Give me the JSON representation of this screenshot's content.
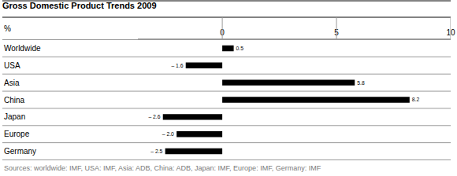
{
  "chart_data": {
    "type": "bar",
    "orientation": "horizontal",
    "title": "Gross Domestic Product Trends 2009",
    "xlabel": "%",
    "source": "Sources: worldwide: IMF, USA: IMF, Asia: ADB, China: ADB, Japan: IMF, Europe: IMF, Germany: IMF",
    "categories": [
      "Worldwide",
      "USA",
      "Asia",
      "China",
      "Japan",
      "Europe",
      "Germany"
    ],
    "values": [
      0.5,
      -1.6,
      5.8,
      8.2,
      -2.6,
      -2.0,
      -2.5
    ],
    "value_labels": [
      "0.5",
      "– 1.6",
      "5.8",
      "8.2",
      "– 2.6",
      "– 2.0",
      "– 2.5"
    ],
    "color": "#000000",
    "xlim": [
      -3.7,
      10
    ],
    "xticks": [
      0,
      5,
      10
    ],
    "grid": false,
    "data_labels": true
  }
}
